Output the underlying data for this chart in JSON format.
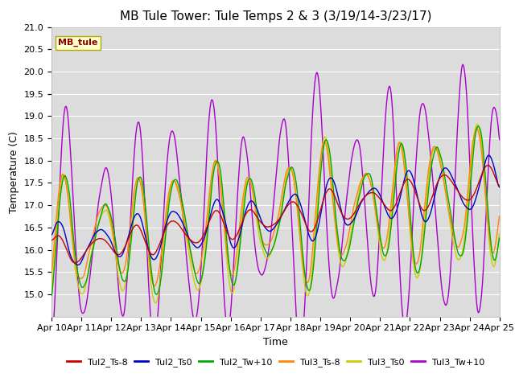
{
  "title": "MB Tule Tower: Tule Temps 2 & 3 (3/19/14-3/23/17)",
  "xlabel": "Time",
  "ylabel": "Temperature (C)",
  "ylim": [
    14.5,
    21.0
  ],
  "xlim": [
    0,
    15
  ],
  "x_tick_labels": [
    "Apr 10",
    "Apr 11",
    "Apr 12",
    "Apr 13",
    "Apr 14",
    "Apr 15",
    "Apr 16",
    "Apr 17",
    "Apr 18",
    "Apr 19",
    "Apr 20",
    "Apr 21",
    "Apr 22",
    "Apr 23",
    "Apr 24",
    "Apr 25"
  ],
  "background_color": "#ffffff",
  "plot_bg_color": "#dcdcdc",
  "grid_color": "#ffffff",
  "legend_label": "MB_tule",
  "legend_text_color": "#8b0000",
  "legend_box_color": "#ffffcc",
  "series": {
    "Tul2_Ts-8": {
      "color": "#cc0000"
    },
    "Tul2_Ts0": {
      "color": "#0000cc"
    },
    "Tul2_Tw+10": {
      "color": "#00aa00"
    },
    "Tul3_Ts-8": {
      "color": "#ff8800"
    },
    "Tul3_Ts0": {
      "color": "#cccc00"
    },
    "Tul3_Tw+10": {
      "color": "#aa00cc"
    }
  },
  "title_fontsize": 11,
  "axis_fontsize": 9,
  "tick_fontsize": 8
}
